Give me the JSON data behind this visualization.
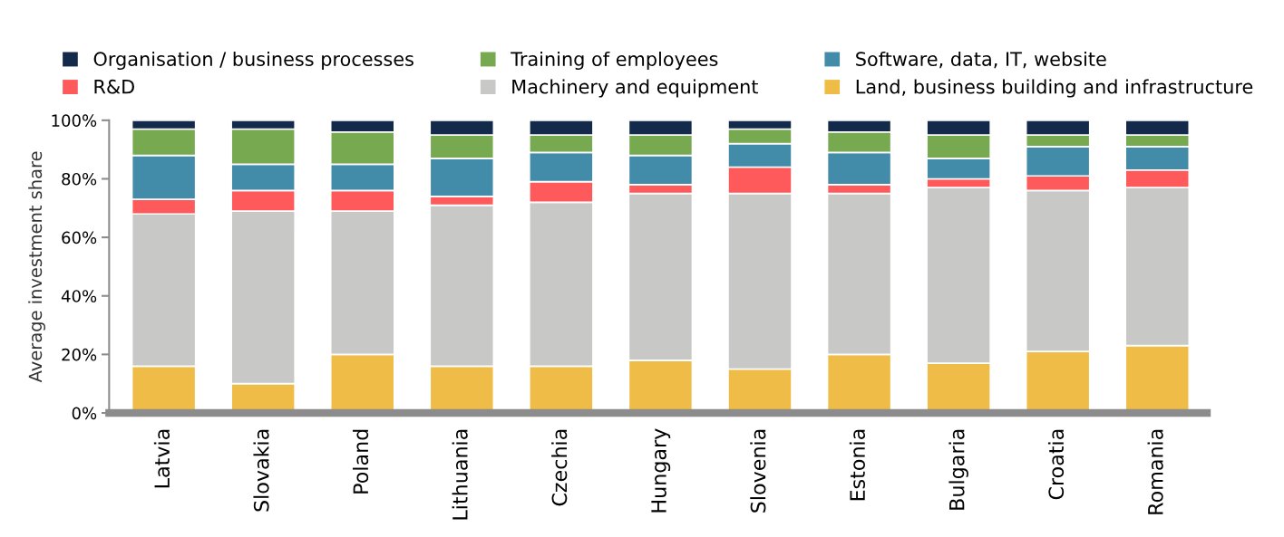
{
  "chart_data": {
    "type": "bar",
    "stacked": true,
    "ylabel": "Average investment share",
    "categories": [
      "Latvia",
      "Slovakia",
      "Poland",
      "Lithuania",
      "Czechia",
      "Hungary",
      "Slovenia",
      "Estonia",
      "Bulgaria",
      "Croatia",
      "Romania"
    ],
    "series": [
      {
        "name": "Land, business building and infrastructure",
        "color": "#efbd47",
        "values": [
          16,
          10,
          20,
          16,
          16,
          18,
          15,
          20,
          17,
          21,
          23
        ]
      },
      {
        "name": "Machinery and equipment",
        "color": "#c8c8c7",
        "values": [
          52,
          59,
          49,
          55,
          56,
          57,
          60,
          55,
          60,
          55,
          54
        ]
      },
      {
        "name": "R&D",
        "color": "#fe5a5c",
        "values": [
          5,
          7,
          7,
          3,
          7,
          3,
          9,
          3,
          3,
          5,
          6
        ]
      },
      {
        "name": "Software, data, IT, website",
        "color": "#428ba9",
        "values": [
          15,
          9,
          9,
          13,
          10,
          10,
          8,
          11,
          7,
          10,
          8
        ]
      },
      {
        "name": "Training of employees",
        "color": "#76a950",
        "values": [
          9,
          12,
          11,
          8,
          6,
          7,
          5,
          7,
          8,
          4,
          4
        ]
      },
      {
        "name": "Organisation / business processes",
        "color": "#132a4a",
        "values": [
          3,
          3,
          4,
          5,
          5,
          5,
          3,
          4,
          5,
          5,
          5
        ]
      }
    ],
    "ylim": [
      0,
      100
    ],
    "yticks": [
      {
        "value": 0,
        "label": "0%"
      },
      {
        "value": 20,
        "label": "20%"
      },
      {
        "value": 40,
        "label": "40%"
      },
      {
        "value": 60,
        "label": "60%"
      },
      {
        "value": 80,
        "label": "80%"
      },
      {
        "value": 100,
        "label": "100%"
      }
    ],
    "grid": false,
    "legend": "top"
  }
}
